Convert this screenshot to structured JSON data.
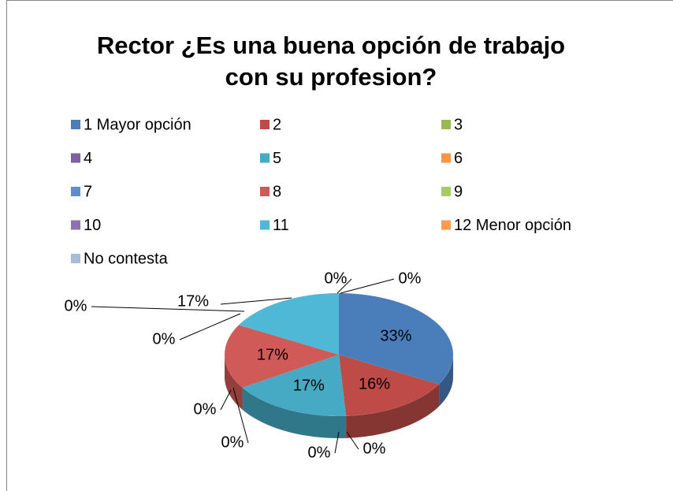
{
  "chart_data": {
    "type": "pie3d",
    "title": "Rector ¿Es una buena opción de trabajo con su profesion?",
    "categories": [
      "1 Mayor opción",
      "2",
      "3",
      "4",
      "5",
      "6",
      "7",
      "8",
      "9",
      "10",
      "11",
      "12 Menor opción",
      "No contesta"
    ],
    "values": [
      33,
      16,
      0,
      0,
      17,
      0,
      0,
      17,
      0,
      0,
      17,
      0,
      0
    ],
    "value_labels": [
      "33%",
      "16%",
      "0%",
      "0%",
      "17%",
      "0%",
      "0%",
      "17%",
      "0%",
      "0%",
      "17%",
      "0%",
      "0%"
    ],
    "colors": [
      "#4a7ebb",
      "#be4b48",
      "#98b954",
      "#7d60a0",
      "#46aac5",
      "#f79646",
      "#5b8fd0",
      "#d05a57",
      "#a8cc63",
      "#8c70b0",
      "#4fb8d6",
      "#fb9a51",
      "#a9bcd8"
    ],
    "legend": "top"
  }
}
